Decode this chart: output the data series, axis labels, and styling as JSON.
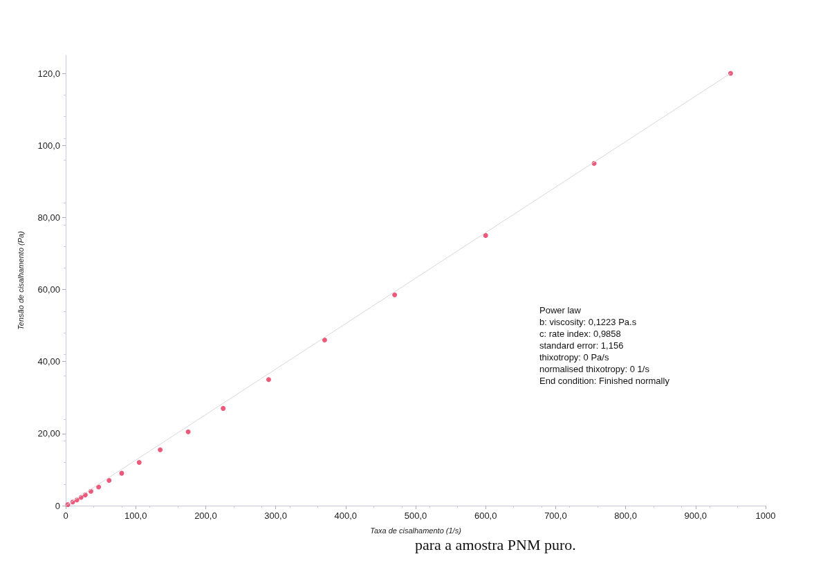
{
  "chart_data": {
    "type": "scatter",
    "xlabel": "Taxa de cisalhamento (1/s)",
    "ylabel": "Tensão de cisalhamento (Pa)",
    "xlim": [
      0,
      1000
    ],
    "ylim": [
      0,
      125
    ],
    "xticks": [
      0,
      {
        "value": 100,
        "label": "100,0"
      },
      {
        "value": 200,
        "label": "200,0"
      },
      {
        "value": 300,
        "label": "300,0"
      },
      {
        "value": 400,
        "label": "400,0"
      },
      {
        "value": 500,
        "label": "500,0"
      },
      {
        "value": 600,
        "label": "600,0"
      },
      {
        "value": 700,
        "label": "700,0"
      },
      {
        "value": 800,
        "label": "800,0"
      },
      {
        "value": 900,
        "label": "900,0"
      },
      1000
    ],
    "yticks": [
      0,
      {
        "value": 20,
        "label": "20,00"
      },
      {
        "value": 40,
        "label": "40,00"
      },
      {
        "value": 60,
        "label": "60,00"
      },
      {
        "value": 80,
        "label": "80,00"
      },
      {
        "value": 100,
        "label": "100,0"
      },
      {
        "value": 120,
        "label": "120,0"
      }
    ],
    "grid": false,
    "series": [
      {
        "type": "line",
        "color": "#d8d8d8",
        "marker": "none",
        "line_style": "solid",
        "x": [
          0,
          950
        ],
        "values": [
          0,
          120
        ]
      },
      {
        "color": "#e8305a",
        "marker": "circle",
        "x": [
          950,
          755,
          600,
          470,
          370,
          290,
          225,
          175,
          135,
          105,
          80,
          62,
          47,
          36,
          28,
          22,
          16,
          10,
          3
        ],
        "values": [
          120,
          95,
          75,
          58.5,
          46,
          35,
          27,
          20.5,
          15.5,
          12,
          9,
          7,
          5.2,
          4,
          3,
          2.3,
          1.6,
          1,
          0.3
        ]
      }
    ],
    "annotations": [
      "Power law\nb: viscosity: 0,1223 Pa.s\nc: rate index: 0,9858\nstandard error: 1,156\nthixotropy: 0 Pa/s\nnormalised thixotropy: 0 1/s\nEnd condition: Finished normally",
      "para a amostra PNM puro."
    ]
  }
}
